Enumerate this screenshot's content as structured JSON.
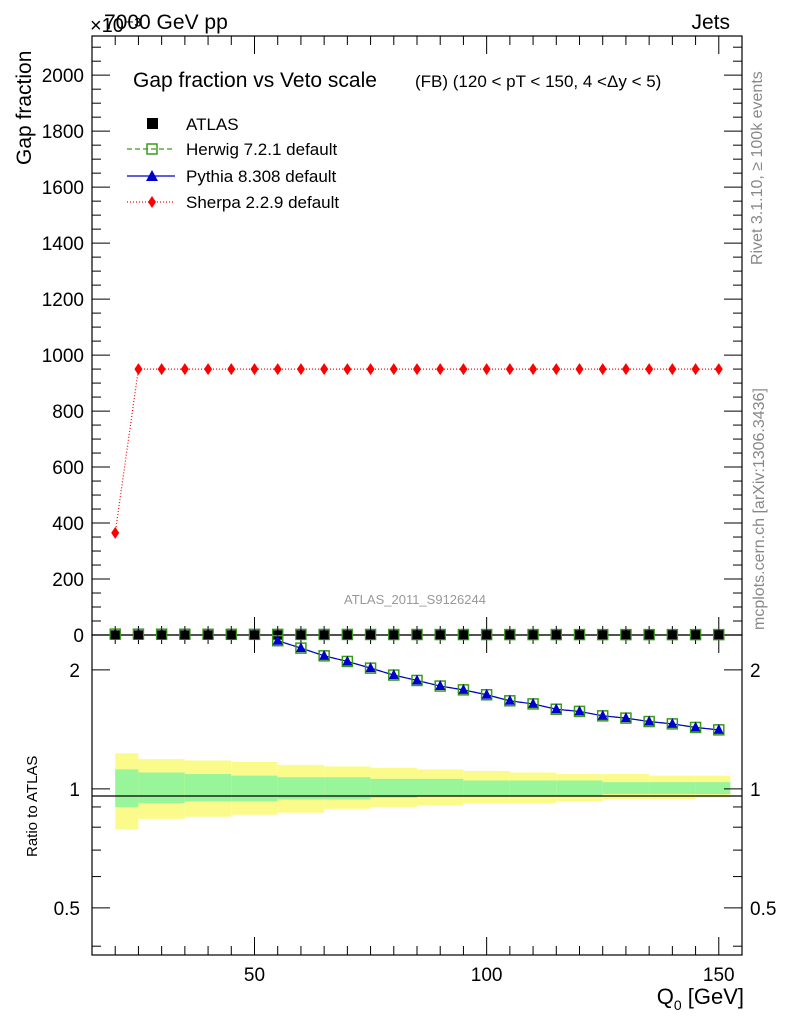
{
  "header": {
    "energy": "7000 GeV pp",
    "process": "Jets",
    "exponent": "×10⁻³"
  },
  "side": {
    "rivet": "Rivet 3.1.10, ≥ 100k events",
    "mcplots": "mcplots.cern.ch [arXiv:1306.3436]"
  },
  "analysis_id": "ATLAS_2011_S9126244",
  "colors": {
    "herwig": "#3a9a1a",
    "pythia": "#0000cc",
    "sherpa": "#ff0000",
    "atlas": "#000000",
    "band_inner": "#99f599",
    "band_outer": "#fbfb8c"
  },
  "chart_data": [
    {
      "type": "line",
      "title": "Gap fraction vs Veto scale",
      "subtitle": "(FB) (120 < pT < 150, 4 <Δy < 5)",
      "ylabel": "Gap fraction",
      "ylim": [
        0,
        2140
      ],
      "yticks": [
        "0",
        "200",
        "400",
        "600",
        "800",
        "1000",
        "1200",
        "1400",
        "1600",
        "1800",
        "2000"
      ],
      "x": [
        20,
        25,
        30,
        35,
        40,
        45,
        50,
        55,
        60,
        65,
        70,
        75,
        80,
        85,
        90,
        95,
        100,
        105,
        110,
        115,
        120,
        125,
        130,
        135,
        140,
        145,
        150
      ],
      "legend_position": "top-left",
      "series": [
        {
          "name": "ATLAS",
          "marker": "square",
          "values": [
            0.6,
            0.7,
            0.75,
            0.78,
            0.8,
            0.82,
            0.83,
            0.84,
            0.85,
            0.86,
            0.87,
            0.88,
            0.88,
            0.89,
            0.89,
            0.9,
            0.9,
            0.91,
            0.91,
            0.92,
            0.92,
            0.92,
            0.93,
            0.93,
            0.93,
            0.94,
            0.94
          ]
        },
        {
          "name": "Herwig 7.2.1 default",
          "marker": "open-square",
          "values": [
            3.1,
            3.0,
            2.9,
            2.75,
            2.6,
            2.5,
            2.35,
            2.25,
            2.15,
            2.05,
            1.95,
            1.85,
            1.78,
            1.72,
            1.66,
            1.62,
            1.58,
            1.54,
            1.5,
            1.47,
            1.44,
            1.42,
            1.4,
            1.37,
            1.35,
            1.33,
            1.31
          ]
        },
        {
          "name": "Pythia 8.308 default",
          "marker": "triangle",
          "values": [
            3.1,
            3.0,
            2.9,
            2.75,
            2.6,
            2.5,
            2.35,
            2.25,
            2.15,
            2.05,
            1.95,
            1.85,
            1.78,
            1.72,
            1.66,
            1.62,
            1.58,
            1.54,
            1.5,
            1.47,
            1.44,
            1.42,
            1.4,
            1.37,
            1.35,
            1.33,
            1.31
          ]
        },
        {
          "name": "Sherpa 2.2.9 default",
          "marker": "diamond",
          "values": [
            365,
            950,
            950,
            950,
            950,
            950,
            950,
            950,
            950,
            950,
            950,
            950,
            950,
            950,
            950,
            950,
            950,
            950,
            950,
            950,
            950,
            950,
            950,
            950,
            950,
            950,
            950
          ]
        }
      ]
    },
    {
      "type": "line",
      "ylabel": "Ratio to ATLAS",
      "xlabel": "Q₀ [GeV]",
      "scale": "log",
      "ylim": [
        0.38,
        2.45
      ],
      "xlim": [
        15,
        155
      ],
      "yticks": [
        {
          "value": 0.5,
          "label": "0.5"
        },
        {
          "value": 1,
          "label": "1"
        },
        {
          "value": 2,
          "label": "2"
        }
      ],
      "xticks": [
        {
          "value": 50,
          "label": "50"
        },
        {
          "value": 100,
          "label": "100"
        },
        {
          "value": 150,
          "label": "150"
        }
      ],
      "x": [
        55,
        60,
        65,
        70,
        75,
        80,
        85,
        90,
        95,
        100,
        105,
        110,
        115,
        120,
        125,
        130,
        135,
        140,
        145,
        150
      ],
      "series": [
        {
          "name": "Herwig 7.2.1 default",
          "values": [
            2.37,
            2.27,
            2.17,
            2.1,
            2.02,
            1.94,
            1.88,
            1.82,
            1.78,
            1.73,
            1.67,
            1.64,
            1.59,
            1.57,
            1.53,
            1.51,
            1.48,
            1.46,
            1.43,
            1.41
          ]
        },
        {
          "name": "Pythia 8.308 default",
          "values": [
            2.37,
            2.27,
            2.17,
            2.1,
            2.02,
            1.94,
            1.88,
            1.82,
            1.78,
            1.73,
            1.67,
            1.64,
            1.59,
            1.57,
            1.53,
            1.51,
            1.48,
            1.46,
            1.43,
            1.41
          ]
        }
      ],
      "bands": {
        "edges": [
          20,
          25,
          35,
          45,
          55,
          65,
          75,
          85,
          95,
          105,
          115,
          125,
          135,
          145,
          152.5
        ],
        "inner_up": [
          1.12,
          1.1,
          1.09,
          1.08,
          1.07,
          1.07,
          1.06,
          1.06,
          1.05,
          1.05,
          1.05,
          1.04,
          1.04,
          1.04
        ],
        "inner_low": [
          0.9,
          0.92,
          0.93,
          0.93,
          0.94,
          0.94,
          0.95,
          0.96,
          0.96,
          0.96,
          0.96,
          0.97,
          0.97,
          0.97
        ],
        "outer_up": [
          1.23,
          1.19,
          1.18,
          1.17,
          1.15,
          1.14,
          1.13,
          1.12,
          1.11,
          1.1,
          1.09,
          1.09,
          1.08,
          1.08
        ],
        "outer_low": [
          0.79,
          0.84,
          0.85,
          0.86,
          0.87,
          0.89,
          0.9,
          0.91,
          0.92,
          0.92,
          0.93,
          0.94,
          0.94,
          0.95
        ]
      }
    }
  ]
}
